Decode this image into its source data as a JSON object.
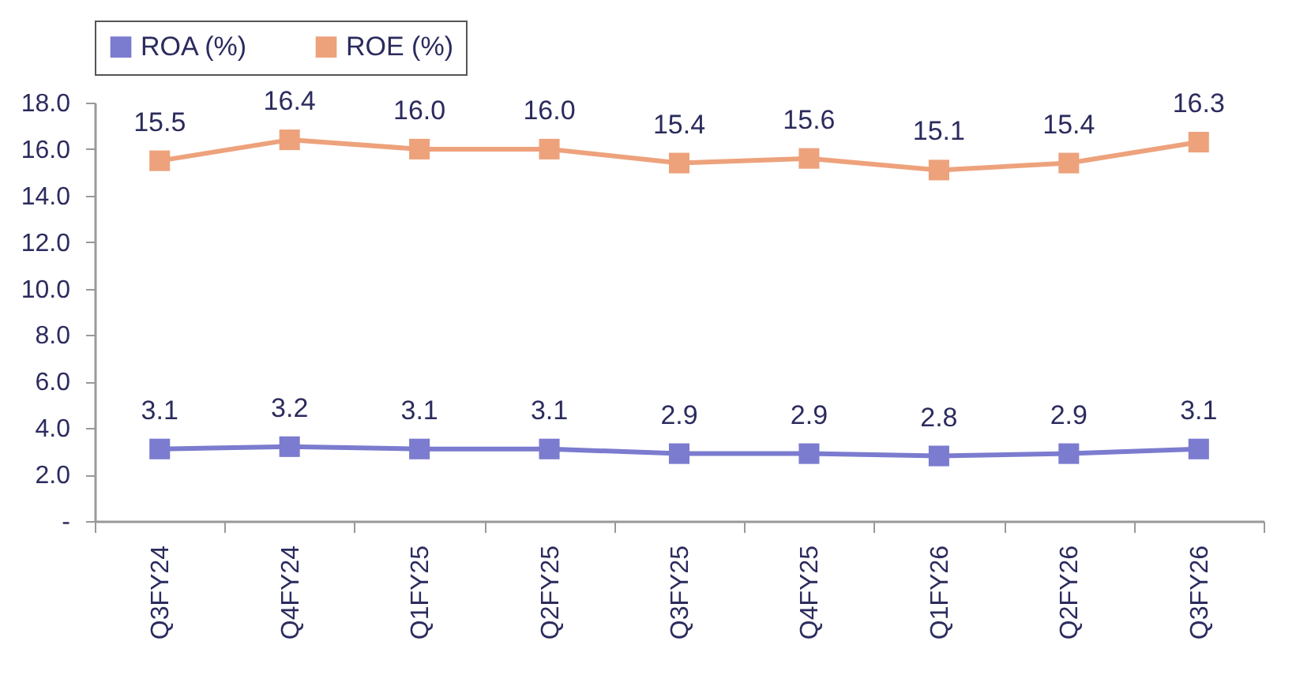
{
  "chart_data": {
    "type": "line",
    "categories": [
      "Q3FY24",
      "Q4FY24",
      "Q1FY25",
      "Q2FY25",
      "Q3FY25",
      "Q4FY25",
      "Q1FY26",
      "Q2FY26",
      "Q3FY26"
    ],
    "series": [
      {
        "name": "ROA (%)",
        "color": "#7b7bcf",
        "values": [
          3.1,
          3.2,
          3.1,
          3.1,
          2.9,
          2.9,
          2.8,
          2.9,
          3.1
        ],
        "value_labels": [
          "3.1",
          "3.2",
          "3.1",
          "3.1",
          "2.9",
          "2.9",
          "2.8",
          "2.9",
          "3.1"
        ]
      },
      {
        "name": "ROE (%)",
        "color": "#eda27c",
        "values": [
          15.5,
          16.4,
          16.0,
          16.0,
          15.4,
          15.6,
          15.1,
          15.4,
          16.3
        ],
        "value_labels": [
          "15.5",
          "16.4",
          "16.0",
          "16.0",
          "15.4",
          "15.6",
          "15.1",
          "15.4",
          "16.3"
        ]
      }
    ],
    "ylim": [
      0,
      18
    ],
    "yticks": [
      {
        "value": 0,
        "label": "-"
      },
      {
        "value": 2,
        "label": "2.0"
      },
      {
        "value": 4,
        "label": "4.0"
      },
      {
        "value": 6,
        "label": "6.0"
      },
      {
        "value": 8,
        "label": "8.0"
      },
      {
        "value": 10,
        "label": "10.0"
      },
      {
        "value": 12,
        "label": "12.0"
      },
      {
        "value": 14,
        "label": "14.0"
      },
      {
        "value": 16,
        "label": "16.0"
      },
      {
        "value": 18,
        "label": "18.0"
      }
    ],
    "data_labels": true,
    "legend": "top",
    "marker": "square",
    "grid": false,
    "line_style": "solid"
  }
}
